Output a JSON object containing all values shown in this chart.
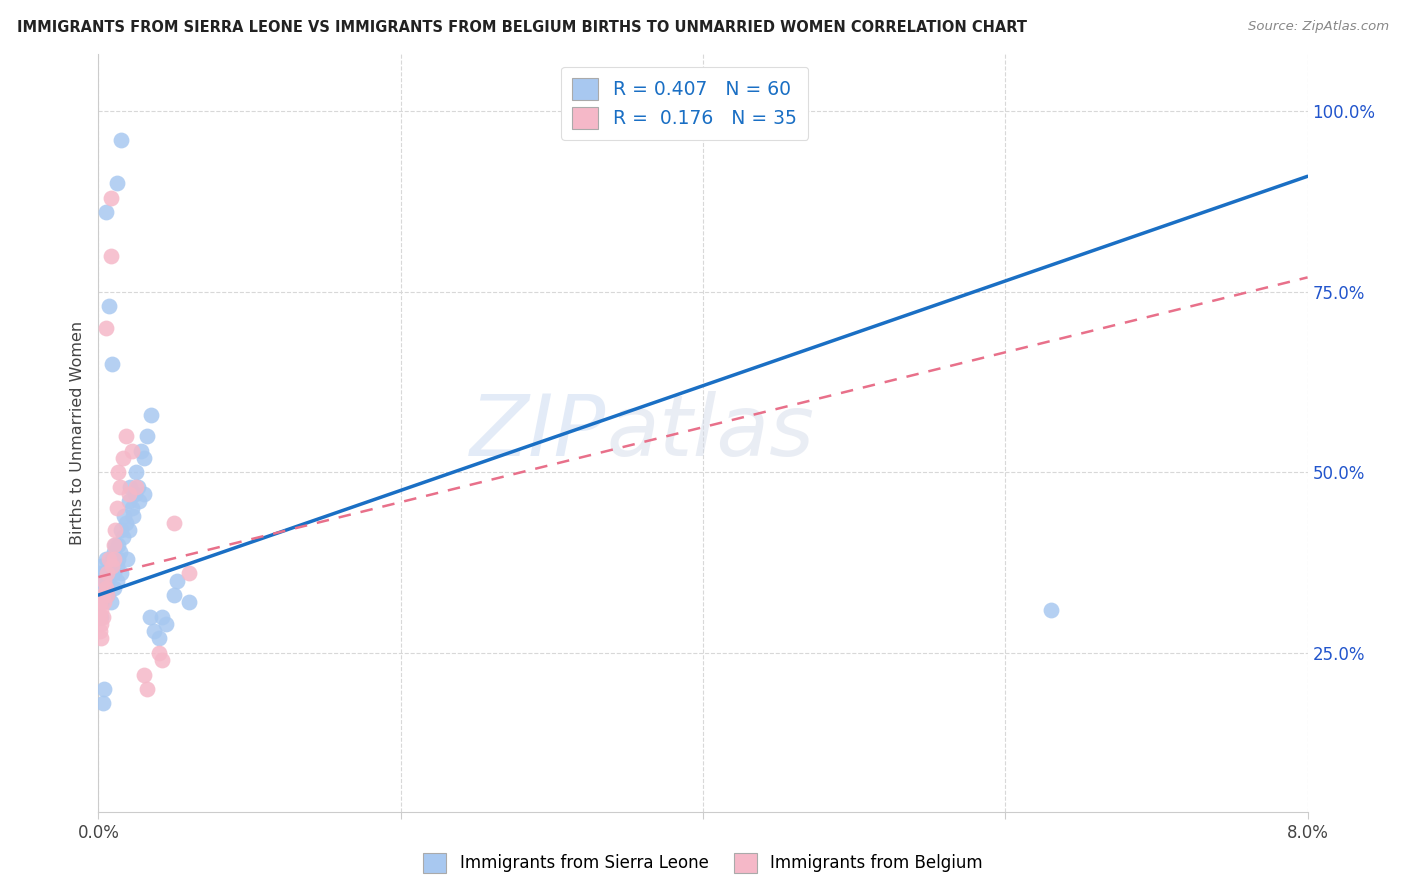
{
  "title": "IMMIGRANTS FROM SIERRA LEONE VS IMMIGRANTS FROM BELGIUM BIRTHS TO UNMARRIED WOMEN CORRELATION CHART",
  "source": "Source: ZipAtlas.com",
  "ylabel": "Births to Unmarried Women",
  "legend_blue_R": "0.407",
  "legend_blue_N": "60",
  "legend_pink_R": "0.176",
  "legend_pink_N": "35",
  "legend_label_blue": "Immigrants from Sierra Leone",
  "legend_label_pink": "Immigrants from Belgium",
  "blue_color": "#A8C8F0",
  "pink_color": "#F5B8C8",
  "blue_line_color": "#1A6FC4",
  "pink_line_color": "#E8708A",
  "watermark_text": "ZIPatlas",
  "blue_line_x0": 0.0,
  "blue_line_y0": 0.33,
  "blue_line_x1": 0.08,
  "blue_line_y1": 0.91,
  "pink_line_x0": 0.0,
  "pink_line_y0": 0.355,
  "pink_line_x1": 0.08,
  "pink_line_y1": 0.77,
  "xlim": [
    0.0,
    0.08
  ],
  "ylim": [
    0.03,
    1.08
  ],
  "yticks": [
    0.25,
    0.5,
    0.75,
    1.0
  ],
  "ytick_labels": [
    "25.0%",
    "50.0%",
    "75.0%",
    "100.0%"
  ],
  "xtick_positions": [
    0.0,
    0.02,
    0.04,
    0.06,
    0.08
  ],
  "xtick_show": [
    true,
    false,
    false,
    false,
    true
  ],
  "xtick_labels_show": [
    "0.0%",
    "",
    "",
    "",
    "8.0%"
  ],
  "grid_color": "#D8D8D8",
  "background_color": "#FFFFFF",
  "blue_x": [
    0.0002,
    0.0003,
    0.0004,
    0.0005,
    0.0006,
    0.0006,
    0.0007,
    0.0008,
    0.0008,
    0.0009,
    0.001,
    0.001,
    0.001,
    0.0011,
    0.0012,
    0.0012,
    0.0013,
    0.0013,
    0.0014,
    0.0015,
    0.0015,
    0.0016,
    0.0017,
    0.0018,
    0.0019,
    0.002,
    0.002,
    0.0021,
    0.0022,
    0.0023,
    0.0024,
    0.0025,
    0.0026,
    0.0027,
    0.0028,
    0.003,
    0.003,
    0.0032,
    0.0034,
    0.0035,
    0.0037,
    0.004,
    0.0042,
    0.0045,
    0.005,
    0.0052,
    0.006,
    0.0001,
    0.0001,
    0.0001,
    0.0002,
    0.0002,
    0.0003,
    0.0004,
    0.0005,
    0.0007,
    0.0009,
    0.0012,
    0.0015,
    0.063
  ],
  "blue_y": [
    0.37,
    0.34,
    0.36,
    0.38,
    0.35,
    0.33,
    0.36,
    0.37,
    0.32,
    0.38,
    0.39,
    0.36,
    0.34,
    0.4,
    0.37,
    0.35,
    0.38,
    0.4,
    0.39,
    0.42,
    0.36,
    0.41,
    0.44,
    0.43,
    0.38,
    0.46,
    0.42,
    0.48,
    0.45,
    0.44,
    0.47,
    0.5,
    0.48,
    0.46,
    0.53,
    0.52,
    0.47,
    0.55,
    0.3,
    0.58,
    0.28,
    0.27,
    0.3,
    0.29,
    0.33,
    0.35,
    0.32,
    0.36,
    0.33,
    0.35,
    0.32,
    0.3,
    0.18,
    0.2,
    0.86,
    0.73,
    0.65,
    0.9,
    0.96,
    0.31
  ],
  "pink_x": [
    0.0001,
    0.0001,
    0.0001,
    0.0002,
    0.0002,
    0.0002,
    0.0003,
    0.0003,
    0.0004,
    0.0004,
    0.0005,
    0.0006,
    0.0006,
    0.0007,
    0.0008,
    0.0009,
    0.001,
    0.001,
    0.0011,
    0.0012,
    0.0013,
    0.0014,
    0.0016,
    0.0018,
    0.002,
    0.0022,
    0.0025,
    0.003,
    0.0032,
    0.004,
    0.0042,
    0.005,
    0.006,
    0.0005,
    0.0008
  ],
  "pink_y": [
    0.32,
    0.3,
    0.28,
    0.31,
    0.29,
    0.27,
    0.33,
    0.3,
    0.35,
    0.32,
    0.34,
    0.36,
    0.33,
    0.38,
    0.8,
    0.37,
    0.4,
    0.38,
    0.42,
    0.45,
    0.5,
    0.48,
    0.52,
    0.55,
    0.47,
    0.53,
    0.48,
    0.22,
    0.2,
    0.25,
    0.24,
    0.43,
    0.36,
    0.7,
    0.88
  ]
}
